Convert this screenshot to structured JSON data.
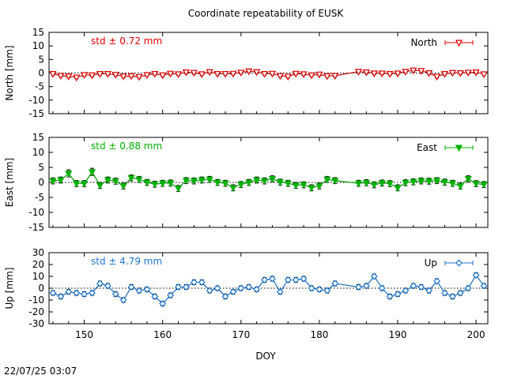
{
  "title": "Coordinate repeatability of EUSK",
  "timestamp": "22/07/25 03:07",
  "xlabel": "DOY",
  "xlim": [
    145.5,
    201.5
  ],
  "xticks": [
    150,
    160,
    170,
    180,
    190,
    200
  ],
  "chart_data": [
    {
      "type": "line",
      "title": "Coordinate repeatability of EUSK",
      "ylabel": "North [mm]",
      "ylim": [
        -15,
        15
      ],
      "yticks": [
        -15,
        -10,
        -5,
        0,
        5,
        10,
        15
      ],
      "std_label": "std ± 0.72 mm",
      "legend": "North",
      "legend_position": "top-right",
      "color": "#e00000",
      "marker": "triangle-down-open",
      "series": [
        {
          "name": "North",
          "x": [
            146,
            147,
            148,
            149,
            150,
            151,
            152,
            153,
            154,
            155,
            156,
            157,
            158,
            159,
            160,
            161,
            162,
            163,
            164,
            165,
            166,
            167,
            168,
            169,
            170,
            171,
            172,
            173,
            174,
            175,
            176,
            177,
            178,
            179,
            180,
            181,
            182,
            185,
            186,
            187,
            188,
            189,
            190,
            191,
            192,
            193,
            194,
            195,
            196,
            197,
            198,
            199,
            200,
            201
          ],
          "y": [
            -0.3,
            -1.0,
            -1.2,
            -1.6,
            -0.7,
            -0.8,
            -0.3,
            -0.3,
            -0.6,
            -1.2,
            -1.1,
            -1.4,
            -0.7,
            -0.3,
            -0.8,
            -0.2,
            -0.4,
            0.3,
            0.1,
            -0.4,
            0.4,
            -0.3,
            -0.3,
            -0.2,
            0.2,
            0.7,
            0.4,
            -0.3,
            -0.2,
            -1.0,
            -1.3,
            -0.2,
            -0.4,
            -0.8,
            -0.5,
            -1.1,
            -1.0,
            0.5,
            0.3,
            -0.1,
            -0.1,
            -0.3,
            -0.1,
            0.5,
            1.0,
            0.8,
            0.0,
            -1.3,
            -0.3,
            0.1,
            0.0,
            0.2,
            0.3,
            -0.4
          ],
          "err": [
            0.5,
            0.5,
            0.5,
            0.5,
            0.5,
            0.5,
            0.5,
            0.5,
            0.5,
            0.5,
            0.5,
            0.5,
            0.5,
            0.5,
            0.5,
            0.5,
            0.5,
            0.5,
            0.5,
            0.5,
            0.5,
            0.5,
            0.5,
            0.5,
            0.5,
            0.5,
            0.5,
            0.5,
            0.5,
            0.5,
            0.5,
            0.5,
            0.5,
            0.5,
            0.5,
            0.5,
            0.5,
            0.5,
            0.5,
            0.5,
            0.5,
            0.5,
            0.5,
            0.5,
            0.7,
            0.7,
            0.5,
            0.5,
            0.5,
            0.5,
            0.5,
            0.5,
            0.5,
            0.5
          ]
        }
      ]
    },
    {
      "type": "line",
      "ylabel": "East [mm]",
      "ylim": [
        -15,
        15
      ],
      "yticks": [
        -15,
        -10,
        -5,
        0,
        5,
        10,
        15
      ],
      "std_label": "std ± 0.88 mm",
      "legend": "East",
      "legend_position": "top-right",
      "color": "#00b000",
      "marker": "triangle-down-filled",
      "series": [
        {
          "name": "East",
          "x": [
            146,
            147,
            148,
            149,
            150,
            151,
            152,
            153,
            154,
            155,
            156,
            157,
            158,
            159,
            160,
            161,
            162,
            163,
            164,
            165,
            166,
            167,
            168,
            169,
            170,
            171,
            172,
            173,
            174,
            175,
            176,
            177,
            178,
            179,
            180,
            181,
            182,
            185,
            186,
            187,
            188,
            189,
            190,
            191,
            192,
            193,
            194,
            195,
            196,
            197,
            198,
            199,
            200,
            201
          ],
          "y": [
            0.5,
            0.8,
            3.0,
            -0.4,
            -0.4,
            3.5,
            -1.0,
            0.8,
            0.4,
            -1.2,
            1.5,
            1.0,
            0.0,
            -0.6,
            -0.3,
            -0.2,
            -2.0,
            0.6,
            0.5,
            0.8,
            1.0,
            0.0,
            -0.3,
            -1.8,
            -0.7,
            0.0,
            0.8,
            0.5,
            1.2,
            0.1,
            -0.3,
            -1.0,
            -0.8,
            -1.8,
            -1.2,
            1.0,
            0.6,
            -0.3,
            -0.1,
            -0.8,
            -0.2,
            -0.4,
            -1.8,
            -0.1,
            0.2,
            0.5,
            0.4,
            0.6,
            0.1,
            -0.3,
            -1.2,
            1.2,
            -0.4,
            -0.7
          ],
          "err": [
            1.0,
            1.0,
            1.2,
            1.0,
            1.0,
            1.2,
            1.0,
            1.0,
            1.0,
            1.0,
            1.0,
            1.0,
            1.0,
            1.0,
            1.0,
            1.0,
            1.0,
            1.0,
            1.0,
            1.0,
            1.0,
            1.0,
            1.0,
            1.0,
            1.0,
            1.0,
            1.0,
            1.0,
            1.0,
            1.0,
            1.0,
            1.0,
            1.0,
            1.0,
            1.0,
            1.0,
            1.0,
            1.0,
            1.0,
            1.0,
            1.0,
            1.0,
            1.0,
            1.0,
            1.0,
            1.0,
            1.0,
            1.0,
            1.0,
            1.0,
            1.0,
            1.0,
            1.0,
            1.0
          ]
        }
      ]
    },
    {
      "type": "line",
      "ylabel": "Up [mm]",
      "ylim": [
        -30,
        30
      ],
      "yticks": [
        -30,
        -20,
        -10,
        0,
        10,
        20,
        30
      ],
      "std_label": "std ± 4.79 mm",
      "legend": "Up",
      "legend_position": "top-right",
      "color": "#1e78d2",
      "marker": "diamond-open",
      "series": [
        {
          "name": "Up",
          "x": [
            146,
            147,
            148,
            149,
            150,
            151,
            152,
            153,
            154,
            155,
            156,
            157,
            158,
            159,
            160,
            161,
            162,
            163,
            164,
            165,
            166,
            167,
            168,
            169,
            170,
            171,
            172,
            173,
            174,
            175,
            176,
            177,
            178,
            179,
            180,
            181,
            182,
            185,
            186,
            187,
            188,
            189,
            190,
            191,
            192,
            193,
            194,
            195,
            196,
            197,
            198,
            199,
            200,
            201
          ],
          "y": [
            -4,
            -7,
            -3,
            -4,
            -5,
            -4,
            4,
            2,
            -5,
            -10,
            1,
            -2,
            -1,
            -7,
            -13,
            -6,
            1,
            1,
            5,
            5,
            -2,
            0,
            -7,
            -3,
            0,
            1,
            -1,
            7,
            8,
            -3,
            7,
            7,
            8,
            0,
            -1,
            -2,
            4,
            1,
            2,
            10,
            0,
            -7,
            -5,
            -2,
            2,
            1,
            -2,
            6,
            -4,
            -7,
            -4,
            0,
            11,
            2
          ],
          "err": [
            2.0,
            2.0,
            2.0,
            2.0,
            2.0,
            2.0,
            2.0,
            2.0,
            2.0,
            2.0,
            2.0,
            2.0,
            2.0,
            2.0,
            2.0,
            2.0,
            2.0,
            2.0,
            2.0,
            2.0,
            2.0,
            2.0,
            2.0,
            2.0,
            2.0,
            2.0,
            2.0,
            2.0,
            2.0,
            2.0,
            2.0,
            2.0,
            2.0,
            2.0,
            2.0,
            2.0,
            2.0,
            2.0,
            2.0,
            2.0,
            2.0,
            2.0,
            2.0,
            2.0,
            2.0,
            2.0,
            2.0,
            2.0,
            2.0,
            2.0,
            2.0,
            2.0,
            2.0,
            2.0
          ]
        }
      ]
    }
  ]
}
